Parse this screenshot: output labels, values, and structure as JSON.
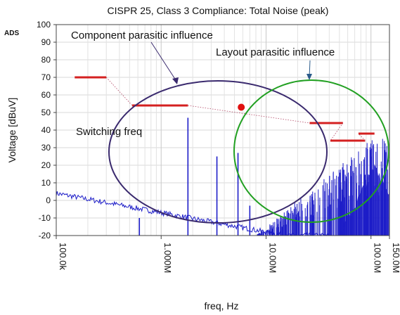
{
  "chart_data": {
    "type": "line",
    "title": "CISPR 25, Class 3 Compliance: Total Noise (peak)",
    "xlabel": "freq, Hz",
    "ylabel": "Voltage [dBuV]",
    "watermark": "ADS",
    "x_scale": "log",
    "xlim": [
      100000,
      150000000
    ],
    "ylim": [
      -20,
      100
    ],
    "y_ticks": [
      -20,
      -10,
      0,
      10,
      20,
      30,
      40,
      50,
      60,
      70,
      80,
      90,
      100
    ],
    "x_ticks": [
      {
        "value": 100000,
        "label": "100.0k"
      },
      {
        "value": 1000000,
        "label": "1.000M"
      },
      {
        "value": 10000000,
        "label": "10.00M"
      },
      {
        "value": 100000000,
        "label": "100.0M"
      },
      {
        "value": 150000000,
        "label": "150.0M"
      }
    ],
    "grid": true,
    "colors": {
      "noise": "#1c1cc8",
      "limit": "#d42020",
      "component": "#3a2a6e",
      "layout": "#22a022",
      "marker": "#e01010"
    },
    "limit_lines": [
      {
        "x1": 150000,
        "x2": 300000,
        "y": 70
      },
      {
        "x1": 530000,
        "x2": 1800000,
        "y": 54
      },
      {
        "x1": 26000000,
        "x2": 54000000,
        "y": 44
      },
      {
        "x1": 30000000,
        "x2": 30000000,
        "y": 44
      },
      {
        "x1": 41000000,
        "x2": 88000000,
        "y": 34
      },
      {
        "x1": 76000000,
        "x2": 108000000,
        "y": 38
      }
    ],
    "spurs": [
      {
        "x": 1800000,
        "y": 47
      },
      {
        "x": 3400000,
        "y": 25
      },
      {
        "x": 5400000,
        "y": 27
      },
      {
        "x": 7000000,
        "y": -3
      },
      {
        "x": 620000,
        "y": -10
      }
    ],
    "marker": {
      "x": 5800000,
      "y": 53
    },
    "annotations": [
      {
        "text": "Component parasitic influence",
        "color": "#3a2a6e"
      },
      {
        "text": "Layout parasitic influence",
        "color": "#22a022"
      },
      {
        "text": "Switching freq",
        "color": "#111111"
      }
    ]
  }
}
